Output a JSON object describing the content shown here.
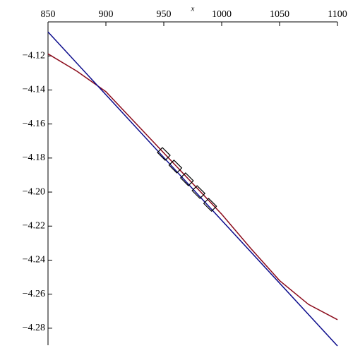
{
  "chart_data": {
    "type": "line",
    "xlabel": "x",
    "xlim": [
      850,
      1100
    ],
    "ylim": [
      -4.29,
      -4.1
    ],
    "xticks": [
      850,
      900,
      950,
      1000,
      1050,
      1100
    ],
    "yticks": [
      {
        "value": -4.12,
        "label": "−4.12"
      },
      {
        "value": -4.14,
        "label": "−4.14"
      },
      {
        "value": -4.16,
        "label": "−4.16"
      },
      {
        "value": -4.18,
        "label": "−4.18"
      },
      {
        "value": -4.2,
        "label": "−4.20"
      },
      {
        "value": -4.22,
        "label": "−4.22"
      },
      {
        "value": -4.24,
        "label": "−4.24"
      },
      {
        "value": -4.26,
        "label": "−4.26"
      },
      {
        "value": -4.28,
        "label": "−4.28"
      }
    ],
    "series": [
      {
        "color": "#8b0a1a",
        "x": [
          850,
          875,
          900,
          925,
          950,
          975,
          1000,
          1025,
          1050,
          1075,
          1100
        ],
        "values": [
          -4.1188,
          -4.129,
          -4.141,
          -4.159,
          -4.177,
          -4.195,
          -4.213,
          -4.233,
          -4.252,
          -4.266,
          -4.275
        ]
      },
      {
        "color": "#0a0a8b",
        "x": [
          850,
          1100
        ],
        "values": [
          -4.1059,
          -4.2904
        ]
      },
      {
        "color": "#000000",
        "marker": "diamond",
        "x": [
          950,
          960,
          970,
          980,
          990
        ],
        "values": [
          -4.1776,
          -4.185,
          -4.1925,
          -4.2,
          -4.2075
        ]
      }
    ]
  }
}
